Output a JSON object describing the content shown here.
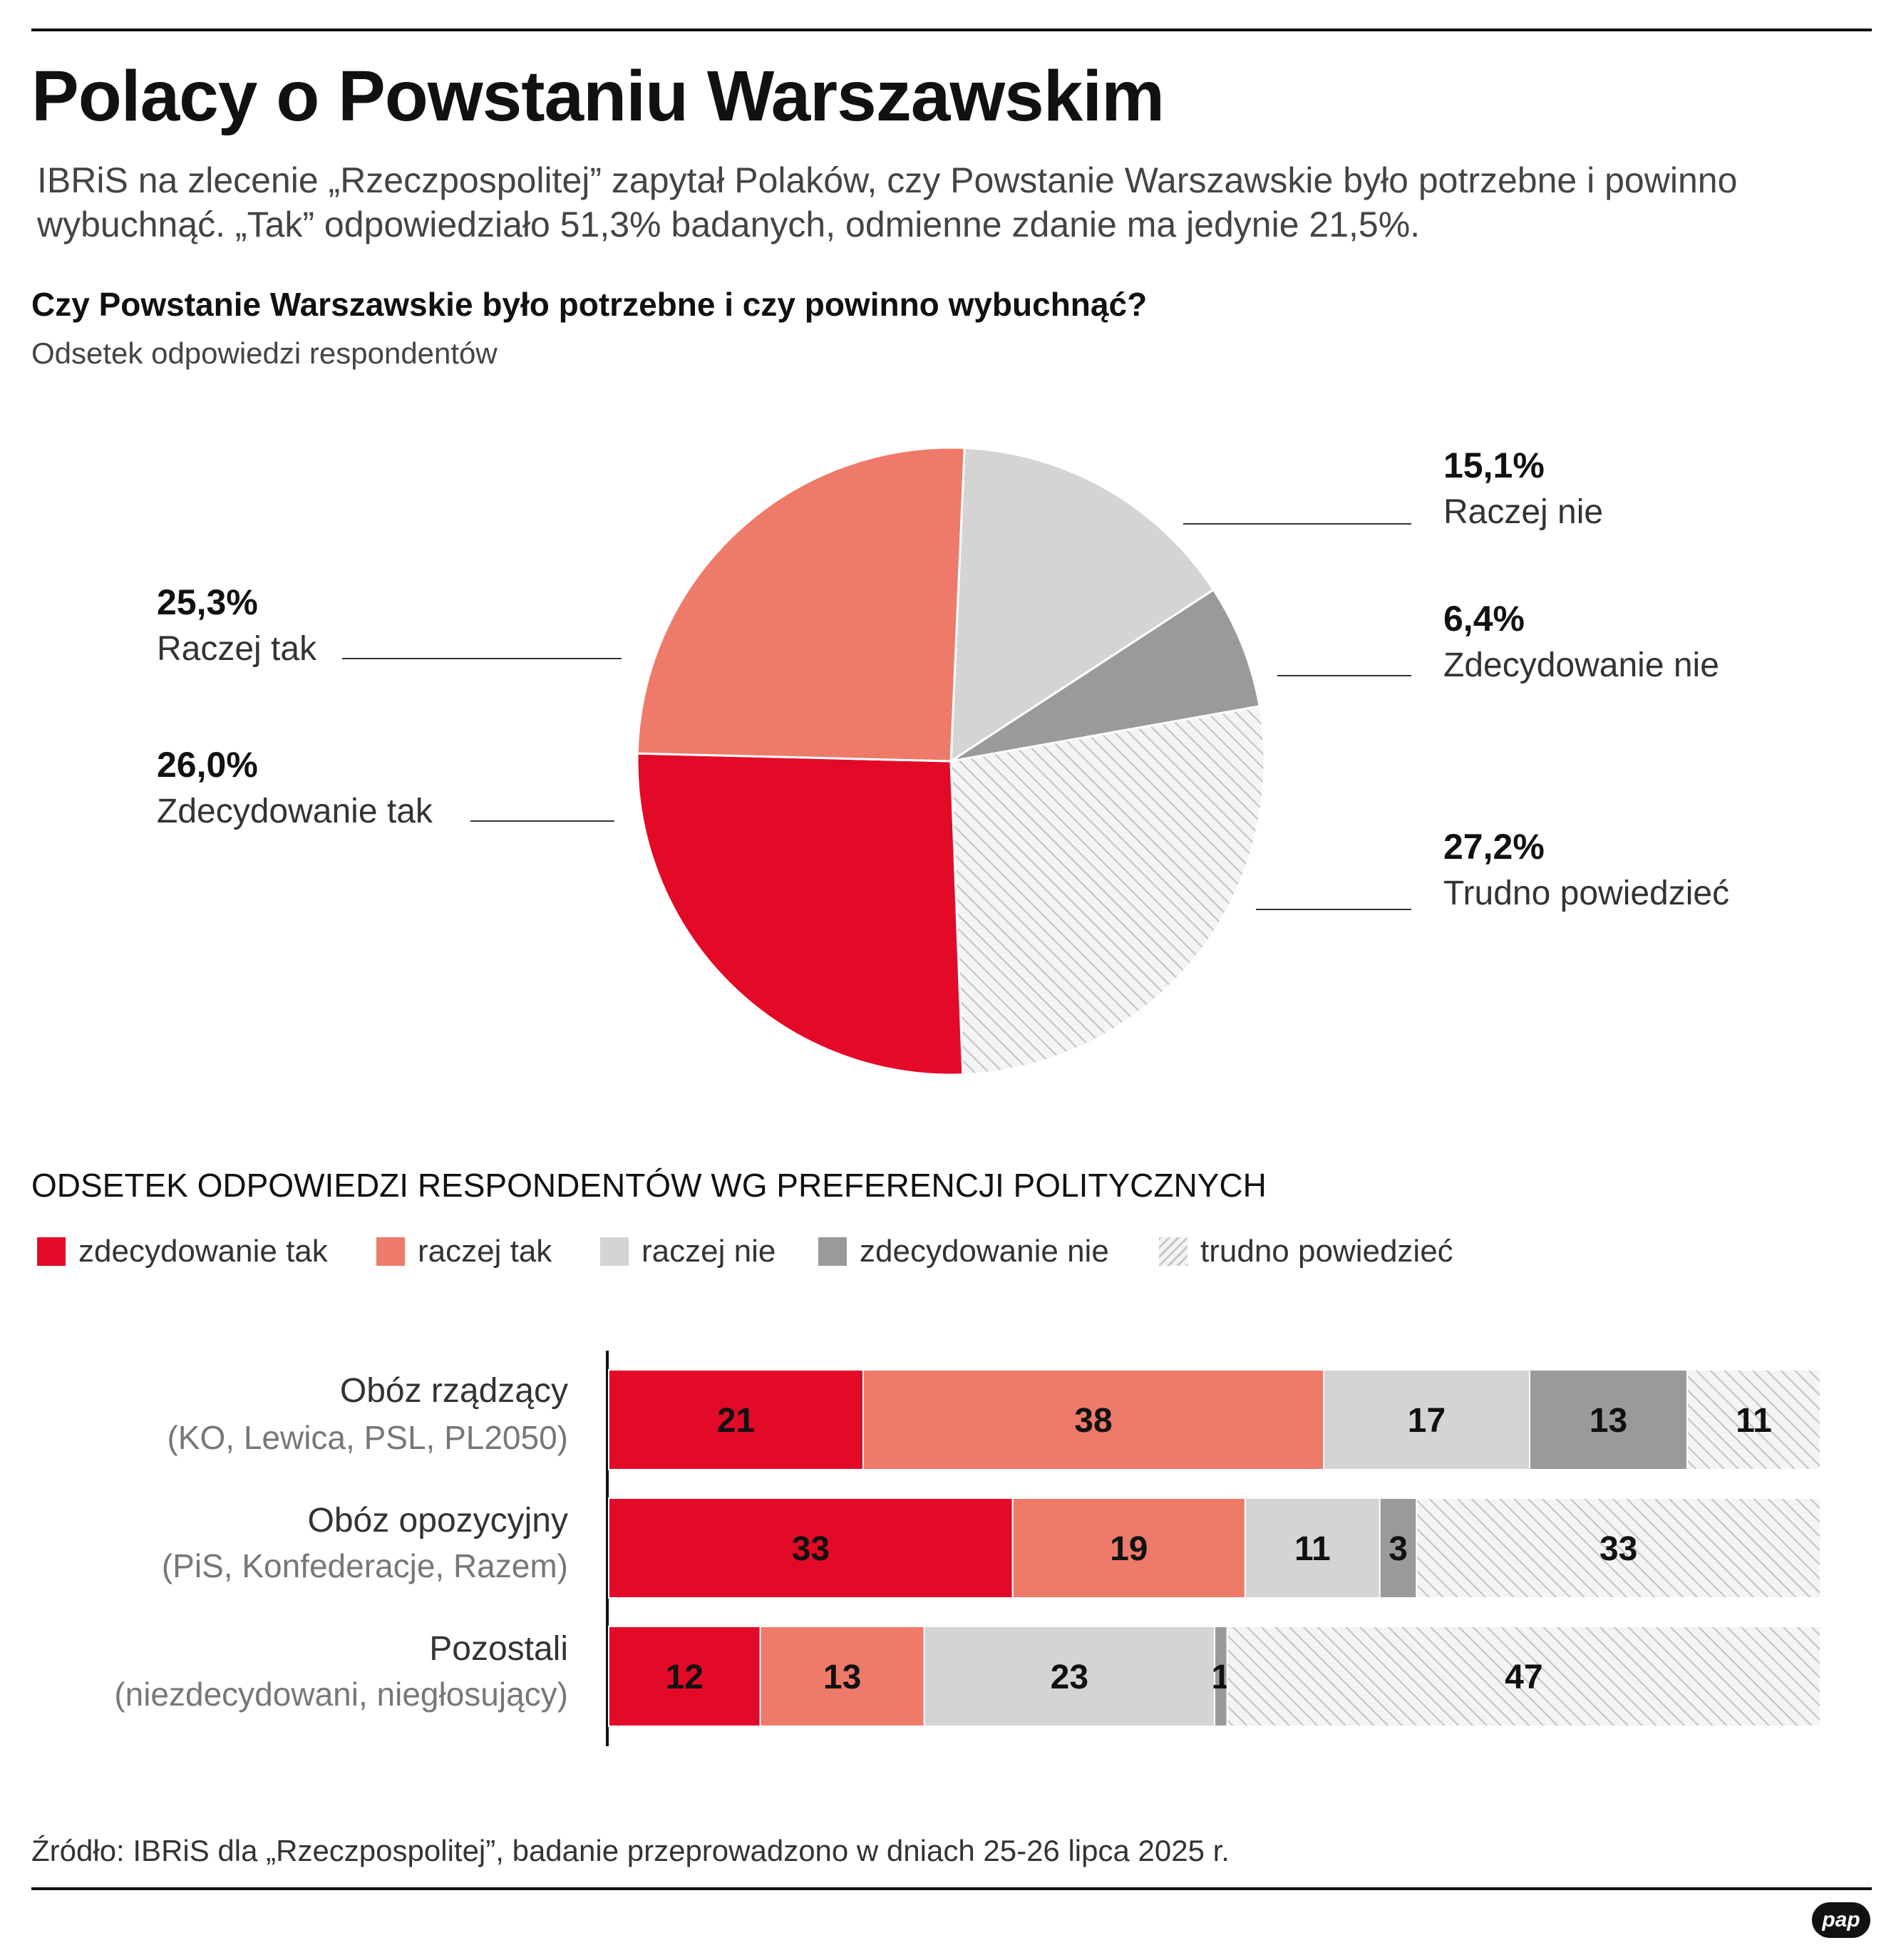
{
  "header": {
    "title": "Polacy o Powstaniu Warszawskim",
    "intro_line1": "IBRiS na zlecenie „Rzeczpospolitej” zapytał Polaków, czy Powstanie Warszawskie było potrzebne i powinno",
    "intro_line2": "wybuchnąć. „Tak” odpowiedziało 51,3% badanych, odmienne zdanie ma jedynie 21,5%."
  },
  "colors": {
    "zdecydowanie_tak": "#e30a27",
    "raczej_tak": "#ee7a69",
    "raczej_nie": "#d4d4d4",
    "zdecydowanie_nie": "#9a9a9a",
    "trudno": "#f0f0f0",
    "hatch": "#c2c2c2"
  },
  "chart_data": [
    {
      "type": "pie",
      "title": "Czy Powstanie Warszawskie było potrzebne i czy powinno wybuchnąć?",
      "subtitle": "Odsetek odpowiedzi respondentów",
      "slices": [
        {
          "label": "Raczej nie",
          "value": 15.1,
          "value_label": "15,1%",
          "color": "#d4d4d4"
        },
        {
          "label": "Zdecydowanie nie",
          "value": 6.4,
          "value_label": "6,4%",
          "color": "#9a9a9a"
        },
        {
          "label": "Trudno powiedzieć",
          "value": 27.2,
          "value_label": "27,2%",
          "color": "hatch"
        },
        {
          "label": "Zdecydowanie tak",
          "value": 26.0,
          "value_label": "26,0%",
          "color": "#e30a27"
        },
        {
          "label": "Raczej tak",
          "value": 25.3,
          "value_label": "25,3%",
          "color": "#ee7a69"
        }
      ]
    },
    {
      "type": "bar",
      "orientation": "horizontal",
      "stacked": true,
      "title": "ODSETEK ODPOWIEDZI RESPONDENTÓW WG PREFERENCJI POLITYCZNYCH",
      "legend": [
        "zdecydowanie tak",
        "raczej tak",
        "raczej nie",
        "zdecydowanie nie",
        "trudno powiedzieć"
      ],
      "categories": [
        {
          "name": "Obóz rządzący",
          "sub": "(KO, Lewica, PSL, PL2050)"
        },
        {
          "name": "Obóz opozycyjny",
          "sub": "(PiS, Konfederacje, Razem)"
        },
        {
          "name": "Pozostali",
          "sub": "(niezdecydowani, niegłosujący)"
        }
      ],
      "series": [
        {
          "name": "zdecydowanie tak",
          "color": "#e30a27",
          "values": [
            21,
            33,
            12
          ]
        },
        {
          "name": "raczej tak",
          "color": "#ee7a69",
          "values": [
            38,
            19,
            13
          ]
        },
        {
          "name": "raczej nie",
          "color": "#d4d4d4",
          "values": [
            17,
            11,
            23
          ]
        },
        {
          "name": "zdecydowanie nie",
          "color": "#9a9a9a",
          "values": [
            13,
            3,
            1
          ]
        },
        {
          "name": "trudno powiedzieć",
          "color": "hatch",
          "values": [
            11,
            33,
            47
          ]
        }
      ]
    }
  ],
  "footer": {
    "source": "Źródło: IBRiS dla „Rzeczpospolitej”, badanie przeprowadzono w dniach 25-26 lipca 2025 r.",
    "logo": "pap"
  }
}
